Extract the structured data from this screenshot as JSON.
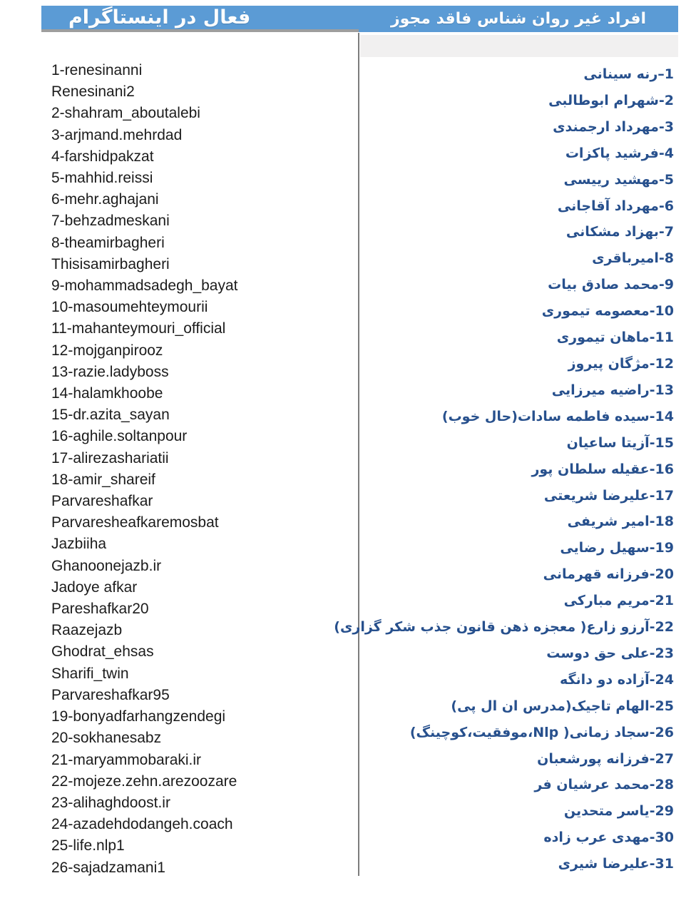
{
  "header": {
    "left_title": "فعال در اینستاگرام",
    "right_title": "افراد غیر روان شناس فاقد مجوز"
  },
  "colors": {
    "header_bg": "#5b9bd5",
    "header_text": "#fdfdfd",
    "divider": "#7d7d7d",
    "band": "#f1f0f0",
    "username_text": "#1c1c1c",
    "person_text": "#27508d"
  },
  "columns": {
    "instagram": {
      "items": [
        "1-renesinanni",
        "Renesinani2",
        "2-shahram_aboutalebi",
        "3-arjmand.mehrdad",
        "4-farshidpakzat",
        "5-mahhid.reissi",
        "6-mehr.aghajani",
        "7-behzadmeskani",
        "8-theamirbagheri",
        "Thisisamirbagheri",
        "9-mohammadsadegh_bayat",
        "10-masoumehteymourii",
        "11-mahanteymouri_official",
        "12-mojganpirooz",
        "13-razie.ladyboss",
        "14-halamkhoobe",
        "15-dr.azita_sayan",
        "16-aghile.soltanpour",
        "17-alirezashariatii",
        "18-amir_shareif",
        "Parvareshafkar",
        "Parvaresheafkaremosbat",
        "Jazbiiha",
        "Ghanoonejazb.ir",
        "Jadoye afkar",
        "Pareshafkar20",
        "Raazejazb",
        "Ghodrat_ehsas",
        "Sharifi_twin",
        "Parvareshafkar95",
        "19-bonyadfarhangzendegi",
        "20-sokhanesabz",
        "21-maryammobaraki.ir",
        "22-mojeze.zehn.arezoozare",
        "23-alihaghdoost.ir",
        "24-azadehdodangeh.coach",
        "25-life.nlp1",
        "26-sajadzamani1"
      ]
    },
    "persons": {
      "items": [
        "1–رنه سینانی",
        "2-شهرام ابوطالبی",
        "3-مهرداد ارجمندی",
        "4-فرشید پاکزات",
        "5-مهشید رییسی",
        "6-مهرداد آقاجانی",
        "7-بهزاد مشکانی",
        "8-امیرباقری",
        "9-محمد صادق بیات",
        "10-معصومه تیموری",
        "11-ماهان تیموری",
        "12-مژگان پیروز",
        "13-راضیه میرزایی",
        "14-سیده فاطمه سادات(حال خوب)",
        "15-آزیتا ساعیان",
        "16-عقیله سلطان پور",
        "17-علیرضا شریعتی",
        "18-امیر شریفی",
        "19-سهیل رضایی",
        "20-فرزانه قهرمانی",
        "21-مریم مبارکی",
        "22-آرزو زارع( معجزه ذهن قانون جذب شکر گزاری)",
        "23-علی حق دوست",
        "24-آزاده دو دانگه",
        "25-الهام تاجیک(مدرس ان ال پی)",
        "26-سجاد زمانی( Nlp،موفقیت،کوچینگ)",
        "27-فرزانه پورشعبان",
        "28-محمد عرشیان فر",
        "29-یاسر متحدین",
        "30-مهدی عرب زاده",
        "31-علیرضا شیری"
      ]
    }
  }
}
